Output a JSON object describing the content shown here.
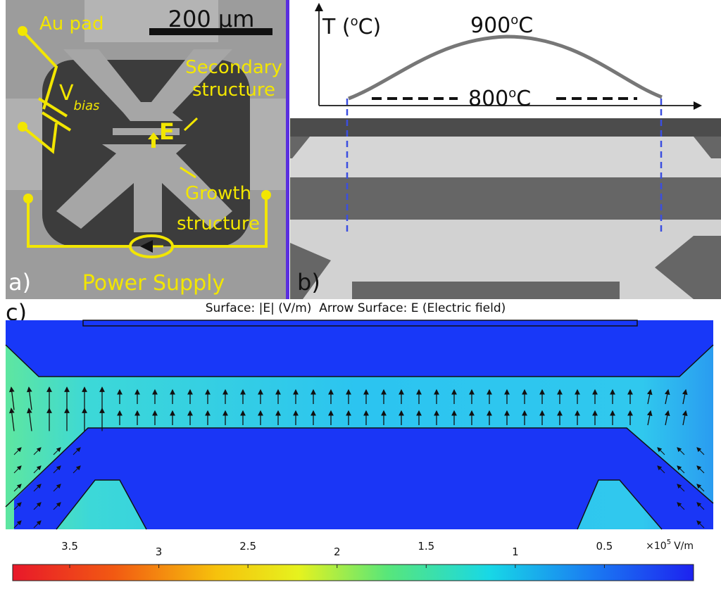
{
  "panel_a": {
    "label": "a)",
    "scale_bar": "200 μm",
    "au_pad": "Au pad",
    "v_bias": {
      "symbol": "V",
      "subscript": "bias"
    },
    "secondary": [
      "Secondary",
      "structure"
    ],
    "field": "E",
    "growth": [
      "Growth",
      "structure"
    ],
    "power_supply": "Power Supply"
  },
  "panel_b": {
    "label": "b)",
    "axis_label": {
      "text": "T (",
      "sup": "o",
      "tail": "C)"
    },
    "peak": {
      "value": "900",
      "sup": "o",
      "unit": "C"
    },
    "base": {
      "value": "800",
      "sup": "o",
      "unit": "C"
    }
  },
  "panel_c": {
    "label": "c)",
    "title": "Surface: |E| (V/m)  Arrow Surface: E (Electric field)",
    "colorbar": {
      "lim": [
        3.82,
        0
      ],
      "ticks": [
        3.5,
        3,
        2.5,
        2,
        1.5,
        1,
        0.5
      ],
      "unit": {
        "base": "×10",
        "exp": "5",
        "tail": "V/m"
      }
    }
  }
}
